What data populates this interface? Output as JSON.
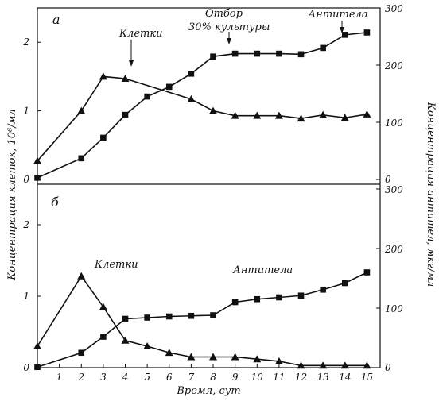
{
  "chart_data": [
    {
      "panel": "а",
      "type": "line",
      "x": [
        0,
        2,
        3,
        4,
        5,
        6,
        7,
        8,
        9,
        10,
        11,
        12,
        13,
        14,
        15
      ],
      "series": [
        {
          "name": "Клетки",
          "axis": "left",
          "marker": "triangle",
          "x": [
            0,
            2,
            3,
            4,
            7,
            8,
            9,
            10,
            11,
            12,
            13,
            14,
            15
          ],
          "values": [
            0.27,
            1.0,
            1.5,
            1.47,
            1.17,
            1.0,
            0.93,
            0.93,
            0.93,
            0.89,
            0.94,
            0.9,
            0.95
          ]
        },
        {
          "name": "Антитела",
          "axis": "right",
          "marker": "square",
          "x": [
            0,
            2,
            3,
            4,
            5,
            6,
            7,
            8,
            9,
            10,
            11,
            12,
            13,
            14,
            15
          ],
          "values": [
            3,
            37,
            73,
            113,
            145,
            162,
            185,
            215,
            220,
            220,
            220,
            219,
            230,
            253,
            257
          ]
        }
      ],
      "ylim_left": [
        0,
        2.5
      ],
      "yticks_left": [
        "0",
        "1",
        "2"
      ],
      "ylim_right": [
        0,
        300
      ],
      "yticks_right": [
        "0",
        "100",
        "200",
        "300"
      ],
      "annotations": {
        "cells_label": "Клетки",
        "antibody_label": "Антитела",
        "selection_line1": "Отбор",
        "selection_line2": "30% культуры"
      }
    },
    {
      "panel": "б",
      "type": "line",
      "series": [
        {
          "name": "Клетки",
          "axis": "left",
          "marker": "triangle",
          "x": [
            0,
            2,
            3,
            4,
            5,
            6,
            7,
            8,
            9,
            10,
            11,
            12,
            13,
            14,
            15
          ],
          "values": [
            0.3,
            1.28,
            0.85,
            0.38,
            0.3,
            0.21,
            0.15,
            0.15,
            0.15,
            0.12,
            0.09,
            0.03,
            0.03,
            0.03,
            0.03
          ]
        },
        {
          "name": "Антитела",
          "axis": "right",
          "marker": "square",
          "x": [
            0,
            2,
            3,
            4,
            5,
            6,
            7,
            8,
            9,
            10,
            11,
            12,
            13,
            14,
            15
          ],
          "values": [
            1,
            25,
            52,
            82,
            84,
            86,
            87,
            88,
            110,
            115,
            118,
            121,
            131,
            142,
            160
          ]
        }
      ],
      "ylim_left": [
        0,
        2.5
      ],
      "yticks_left": [
        "0",
        "1",
        "2"
      ],
      "ylim_right": [
        0,
        300
      ],
      "yticks_right": [
        "0",
        "100",
        "200",
        "300"
      ],
      "annotations": {
        "cells_label": "Клетки",
        "antibody_label": "Антитела"
      }
    }
  ],
  "xlim": [
    0,
    15.6
  ],
  "xticks": [
    "1",
    "2",
    "3",
    "4",
    "5",
    "6",
    "7",
    "8",
    "9",
    "10",
    "11",
    "12",
    "13",
    "14",
    "15"
  ],
  "xlabel": "Время, сут",
  "ylabel_left": "Концентрация клеток, 10⁶/мл",
  "ylabel_right": "Концентрация антител, мкг/мл"
}
